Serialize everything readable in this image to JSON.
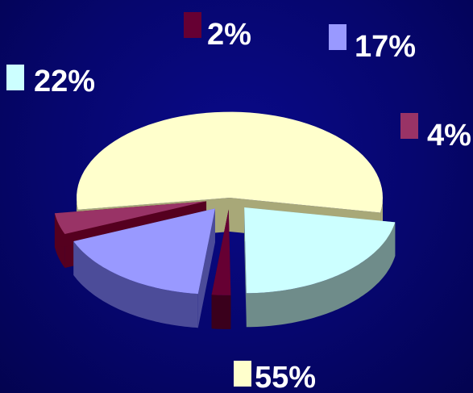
{
  "chart_data": {
    "type": "pie",
    "style": "3d-exploded",
    "background": "#06066e",
    "slices": [
      {
        "label": "55%",
        "value": 55,
        "color": "#ffffcc",
        "side_color": "#a8a878"
      },
      {
        "label": "22%",
        "value": 22,
        "color": "#ccffff",
        "side_color": "#6f8c8a"
      },
      {
        "label": "2%",
        "value": 2,
        "color": "#660033",
        "side_color": "#3a001c"
      },
      {
        "label": "17%",
        "value": 17,
        "color": "#9999ff",
        "side_color": "#4c4c99"
      },
      {
        "label": "4%",
        "value": 4,
        "color": "#993366",
        "side_color": "#55001f"
      }
    ],
    "legend_placement": "labels around pie, each with colored square"
  }
}
